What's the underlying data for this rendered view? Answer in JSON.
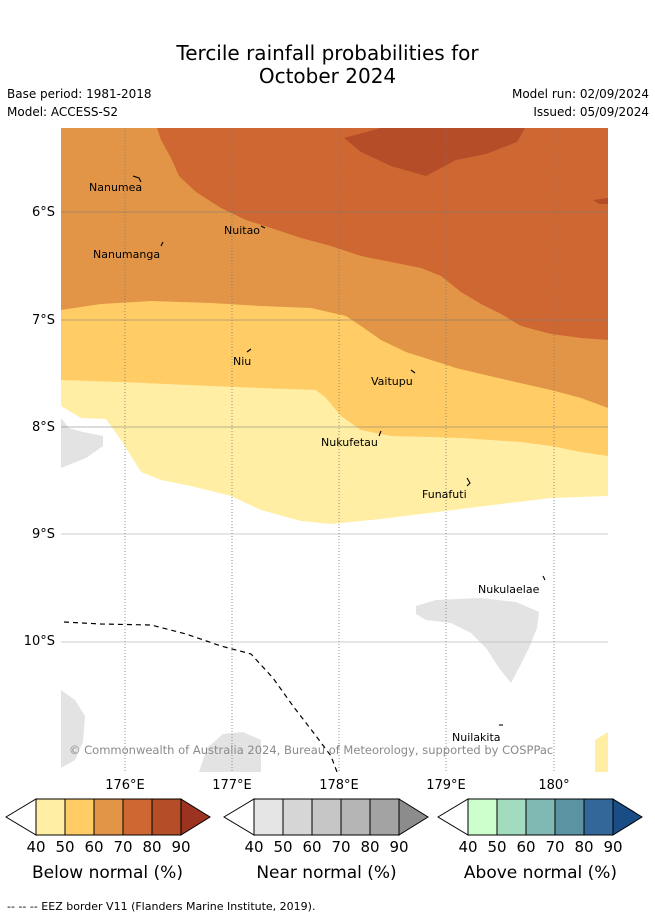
{
  "header": {
    "title_line1": "Tercile rainfall probabilities for",
    "title_line2": "October 2024",
    "base_period": "Base period: 1981-2018",
    "model": "Model: ACCESS-S2",
    "model_run": "Model run: 02/09/2024",
    "issued": "Issued: 05/09/2024"
  },
  "map": {
    "lat_labels": [
      "6°S",
      "7°S",
      "8°S",
      "9°S",
      "10°S"
    ],
    "lon_labels": [
      "176°E",
      "177°E",
      "178°E",
      "179°E",
      "180°"
    ],
    "places": [
      "Nanumea",
      "Nuitao",
      "Nanumanga",
      "Niu",
      "Vaitupu",
      "Nukufetau",
      "Funafuti",
      "Nukulaelae",
      "Nuilakita"
    ],
    "copyright": "© Commonwealth of Australia 2024, Bureau of Meteorology, supported by COSPPac"
  },
  "legend": {
    "ticks": [
      "40",
      "50",
      "60",
      "70",
      "80",
      "90"
    ],
    "below_title": "Below normal (%)",
    "near_title": "Near normal (%)",
    "above_title": "Above normal (%)",
    "below_colors": [
      "#ffeea3",
      "#ffcc66",
      "#e39547",
      "#cf6733",
      "#b54d29",
      "#9c3321"
    ],
    "near_colors": [
      "#e5e5e5",
      "#d6d6d6",
      "#c6c6c6",
      "#b5b5b5",
      "#a3a3a3",
      "#8c8c8c"
    ],
    "above_colors": [
      "#ccffcc",
      "#a3dbbf",
      "#80b8b3",
      "#5c93a3",
      "#336699",
      "#1a4d85"
    ]
  },
  "footer": {
    "eez_note": "--  --  -- EEZ border V11 (Flanders Marine Institute, 2019)."
  }
}
